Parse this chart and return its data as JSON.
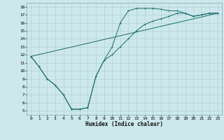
{
  "xlabel": "Humidex (Indice chaleur)",
  "xlim": [
    -0.5,
    23.5
  ],
  "ylim": [
    4.5,
    18.5
  ],
  "xticks": [
    0,
    1,
    2,
    3,
    4,
    5,
    6,
    7,
    8,
    9,
    10,
    11,
    12,
    13,
    14,
    15,
    16,
    17,
    18,
    19,
    20,
    21,
    22,
    23
  ],
  "yticks": [
    5,
    6,
    7,
    8,
    9,
    10,
    11,
    12,
    13,
    14,
    15,
    16,
    17,
    18
  ],
  "bg_color": "#cde8ec",
  "line_color": "#1a6b6b",
  "grid_color": "#aacdd4",
  "curve1_x": [
    0,
    1,
    2,
    3,
    4,
    5,
    6,
    7,
    8,
    9,
    10,
    11,
    12,
    13,
    14,
    15,
    16,
    17,
    18,
    19,
    20,
    21,
    22,
    23
  ],
  "curve1_y": [
    11.8,
    10.5,
    9.0,
    8.2,
    7.0,
    5.2,
    5.2,
    5.4,
    9.3,
    11.3,
    13.0,
    16.0,
    17.5,
    17.8,
    17.8,
    17.8,
    17.7,
    17.5,
    17.5,
    17.2,
    16.8,
    17.0,
    17.2,
    17.2
  ],
  "curve2_x": [
    0,
    1,
    2,
    3,
    4,
    5,
    6,
    7,
    8,
    9,
    10,
    11,
    12,
    13,
    14,
    15,
    16,
    17,
    18,
    19,
    20,
    21,
    22,
    23
  ],
  "curve2_y": [
    11.8,
    10.5,
    9.0,
    8.2,
    7.0,
    5.2,
    5.2,
    5.4,
    9.3,
    11.3,
    12.0,
    13.0,
    14.0,
    15.0,
    15.8,
    16.2,
    16.5,
    16.8,
    17.2,
    17.2,
    16.8,
    17.0,
    17.2,
    17.2
  ],
  "curve3_x": [
    0,
    23
  ],
  "curve3_y": [
    11.8,
    17.2
  ],
  "xlabel_fontsize": 5.5,
  "tick_fontsize": 4.5,
  "lw": 0.7,
  "ms": 2.0
}
